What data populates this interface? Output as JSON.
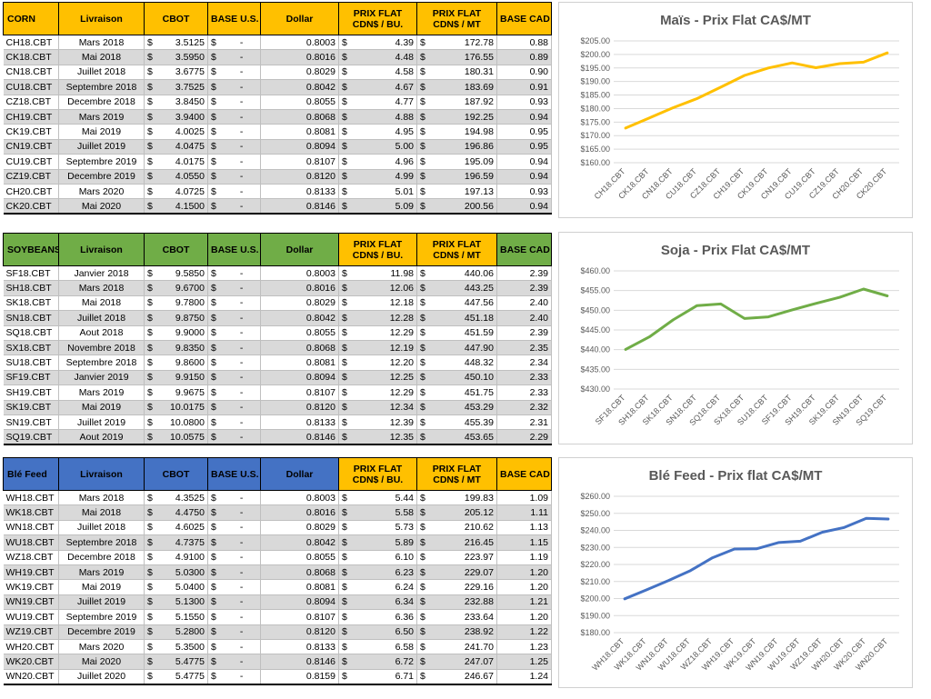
{
  "tables": [
    {
      "id": "corn",
      "headers": [
        "CORN",
        "Livraison",
        "CBOT",
        "BASE U.S.",
        "Dollar",
        "PRIX FLAT CDN$ / BU.",
        "PRIX FLAT CDN$ / MT",
        "BASE CAD"
      ],
      "rows": [
        {
          "code": "CH18.CBT",
          "delivery": "Mars 2018",
          "cbot": "3.5125",
          "base_us": "-",
          "dollar": "0.8003",
          "flat_bu": "4.39",
          "flat_mt": "172.78",
          "base_cad": "0.88"
        },
        {
          "code": "CK18.CBT",
          "delivery": "Mai 2018",
          "cbot": "3.5950",
          "base_us": "-",
          "dollar": "0.8016",
          "flat_bu": "4.48",
          "flat_mt": "176.55",
          "base_cad": "0.89"
        },
        {
          "code": "CN18.CBT",
          "delivery": "Juillet 2018",
          "cbot": "3.6775",
          "base_us": "-",
          "dollar": "0.8029",
          "flat_bu": "4.58",
          "flat_mt": "180.31",
          "base_cad": "0.90"
        },
        {
          "code": "CU18.CBT",
          "delivery": "Septembre 2018",
          "cbot": "3.7525",
          "base_us": "-",
          "dollar": "0.8042",
          "flat_bu": "4.67",
          "flat_mt": "183.69",
          "base_cad": "0.91"
        },
        {
          "code": "CZ18.CBT",
          "delivery": "Decembre 2018",
          "cbot": "3.8450",
          "base_us": "-",
          "dollar": "0.8055",
          "flat_bu": "4.77",
          "flat_mt": "187.92",
          "base_cad": "0.93"
        },
        {
          "code": "CH19.CBT",
          "delivery": "Mars 2019",
          "cbot": "3.9400",
          "base_us": "-",
          "dollar": "0.8068",
          "flat_bu": "4.88",
          "flat_mt": "192.25",
          "base_cad": "0.94"
        },
        {
          "code": "CK19.CBT",
          "delivery": "Mai 2019",
          "cbot": "4.0025",
          "base_us": "-",
          "dollar": "0.8081",
          "flat_bu": "4.95",
          "flat_mt": "194.98",
          "base_cad": "0.95"
        },
        {
          "code": "CN19.CBT",
          "delivery": "Juillet 2019",
          "cbot": "4.0475",
          "base_us": "-",
          "dollar": "0.8094",
          "flat_bu": "5.00",
          "flat_mt": "196.86",
          "base_cad": "0.95"
        },
        {
          "code": "CU19.CBT",
          "delivery": "Septembre 2019",
          "cbot": "4.0175",
          "base_us": "-",
          "dollar": "0.8107",
          "flat_bu": "4.96",
          "flat_mt": "195.09",
          "base_cad": "0.94"
        },
        {
          "code": "CZ19.CBT",
          "delivery": "Decembre 2019",
          "cbot": "4.0550",
          "base_us": "-",
          "dollar": "0.8120",
          "flat_bu": "4.99",
          "flat_mt": "196.59",
          "base_cad": "0.94"
        },
        {
          "code": "CH20.CBT",
          "delivery": "Mars 2020",
          "cbot": "4.0725",
          "base_us": "-",
          "dollar": "0.8133",
          "flat_bu": "5.01",
          "flat_mt": "197.13",
          "base_cad": "0.93"
        },
        {
          "code": "CK20.CBT",
          "delivery": "Mai 2020",
          "cbot": "4.1500",
          "base_us": "-",
          "dollar": "0.8146",
          "flat_bu": "5.09",
          "flat_mt": "200.56",
          "base_cad": "0.94"
        }
      ]
    },
    {
      "id": "soybeans",
      "headers": [
        "SOYBEANS",
        "Livraison",
        "CBOT",
        "BASE U.S.",
        "Dollar",
        "PRIX FLAT CDN$ / BU.",
        "PRIX FLAT CDN$ / MT",
        "BASE CAD"
      ],
      "rows": [
        {
          "code": "SF18.CBT",
          "delivery": "Janvier 2018",
          "cbot": "9.5850",
          "base_us": "-",
          "dollar": "0.8003",
          "flat_bu": "11.98",
          "flat_mt": "440.06",
          "base_cad": "2.39"
        },
        {
          "code": "SH18.CBT",
          "delivery": "Mars 2018",
          "cbot": "9.6700",
          "base_us": "-",
          "dollar": "0.8016",
          "flat_bu": "12.06",
          "flat_mt": "443.25",
          "base_cad": "2.39"
        },
        {
          "code": "SK18.CBT",
          "delivery": "Mai 2018",
          "cbot": "9.7800",
          "base_us": "-",
          "dollar": "0.8029",
          "flat_bu": "12.18",
          "flat_mt": "447.56",
          "base_cad": "2.40"
        },
        {
          "code": "SN18.CBT",
          "delivery": "Juillet 2018",
          "cbot": "9.8750",
          "base_us": "-",
          "dollar": "0.8042",
          "flat_bu": "12.28",
          "flat_mt": "451.18",
          "base_cad": "2.40"
        },
        {
          "code": "SQ18.CBT",
          "delivery": "Aout 2018",
          "cbot": "9.9000",
          "base_us": "-",
          "dollar": "0.8055",
          "flat_bu": "12.29",
          "flat_mt": "451.59",
          "base_cad": "2.39"
        },
        {
          "code": "SX18.CBT",
          "delivery": "Novembre 2018",
          "cbot": "9.8350",
          "base_us": "-",
          "dollar": "0.8068",
          "flat_bu": "12.19",
          "flat_mt": "447.90",
          "base_cad": "2.35"
        },
        {
          "code": "SU18.CBT",
          "delivery": "Septembre 2018",
          "cbot": "9.8600",
          "base_us": "-",
          "dollar": "0.8081",
          "flat_bu": "12.20",
          "flat_mt": "448.32",
          "base_cad": "2.34"
        },
        {
          "code": "SF19.CBT",
          "delivery": "Janvier 2019",
          "cbot": "9.9150",
          "base_us": "-",
          "dollar": "0.8094",
          "flat_bu": "12.25",
          "flat_mt": "450.10",
          "base_cad": "2.33"
        },
        {
          "code": "SH19.CBT",
          "delivery": "Mars 2019",
          "cbot": "9.9675",
          "base_us": "-",
          "dollar": "0.8107",
          "flat_bu": "12.29",
          "flat_mt": "451.75",
          "base_cad": "2.33"
        },
        {
          "code": "SK19.CBT",
          "delivery": "Mai 2019",
          "cbot": "10.0175",
          "base_us": "-",
          "dollar": "0.8120",
          "flat_bu": "12.34",
          "flat_mt": "453.29",
          "base_cad": "2.32"
        },
        {
          "code": "SN19.CBT",
          "delivery": "Juillet 2019",
          "cbot": "10.0800",
          "base_us": "-",
          "dollar": "0.8133",
          "flat_bu": "12.39",
          "flat_mt": "455.39",
          "base_cad": "2.31"
        },
        {
          "code": "SQ19.CBT",
          "delivery": "Aout 2019",
          "cbot": "10.0575",
          "base_us": "-",
          "dollar": "0.8146",
          "flat_bu": "12.35",
          "flat_mt": "453.65",
          "base_cad": "2.29"
        }
      ]
    },
    {
      "id": "wheat",
      "headers": [
        "Blé Feed",
        "Livraison",
        "CBOT",
        "BASE U.S.",
        "Dollar",
        "PRIX FLAT CDN$ / BU.",
        "PRIX FLAT CDN$ / MT",
        "BASE CAD"
      ],
      "rows": [
        {
          "code": "WH18.CBT",
          "delivery": "Mars 2018",
          "cbot": "4.3525",
          "base_us": "-",
          "dollar": "0.8003",
          "flat_bu": "5.44",
          "flat_mt": "199.83",
          "base_cad": "1.09"
        },
        {
          "code": "WK18.CBT",
          "delivery": "Mai 2018",
          "cbot": "4.4750",
          "base_us": "-",
          "dollar": "0.8016",
          "flat_bu": "5.58",
          "flat_mt": "205.12",
          "base_cad": "1.11"
        },
        {
          "code": "WN18.CBT",
          "delivery": "Juillet 2018",
          "cbot": "4.6025",
          "base_us": "-",
          "dollar": "0.8029",
          "flat_bu": "5.73",
          "flat_mt": "210.62",
          "base_cad": "1.13"
        },
        {
          "code": "WU18.CBT",
          "delivery": "Septembre 2018",
          "cbot": "4.7375",
          "base_us": "-",
          "dollar": "0.8042",
          "flat_bu": "5.89",
          "flat_mt": "216.45",
          "base_cad": "1.15"
        },
        {
          "code": "WZ18.CBT",
          "delivery": "Decembre 2018",
          "cbot": "4.9100",
          "base_us": "-",
          "dollar": "0.8055",
          "flat_bu": "6.10",
          "flat_mt": "223.97",
          "base_cad": "1.19"
        },
        {
          "code": "WH19.CBT",
          "delivery": "Mars 2019",
          "cbot": "5.0300",
          "base_us": "-",
          "dollar": "0.8068",
          "flat_bu": "6.23",
          "flat_mt": "229.07",
          "base_cad": "1.20"
        },
        {
          "code": "WK19.CBT",
          "delivery": "Mai 2019",
          "cbot": "5.0400",
          "base_us": "-",
          "dollar": "0.8081",
          "flat_bu": "6.24",
          "flat_mt": "229.16",
          "base_cad": "1.20"
        },
        {
          "code": "WN19.CBT",
          "delivery": "Juillet 2019",
          "cbot": "5.1300",
          "base_us": "-",
          "dollar": "0.8094",
          "flat_bu": "6.34",
          "flat_mt": "232.88",
          "base_cad": "1.21"
        },
        {
          "code": "WU19.CBT",
          "delivery": "Septembre 2019",
          "cbot": "5.1550",
          "base_us": "-",
          "dollar": "0.8107",
          "flat_bu": "6.36",
          "flat_mt": "233.64",
          "base_cad": "1.20"
        },
        {
          "code": "WZ19.CBT",
          "delivery": "Decembre 2019",
          "cbot": "5.2800",
          "base_us": "-",
          "dollar": "0.8120",
          "flat_bu": "6.50",
          "flat_mt": "238.92",
          "base_cad": "1.22"
        },
        {
          "code": "WH20.CBT",
          "delivery": "Mars 2020",
          "cbot": "5.3500",
          "base_us": "-",
          "dollar": "0.8133",
          "flat_bu": "6.58",
          "flat_mt": "241.70",
          "base_cad": "1.23"
        },
        {
          "code": "WK20.CBT",
          "delivery": "Mai 2020",
          "cbot": "5.4775",
          "base_us": "-",
          "dollar": "0.8146",
          "flat_bu": "6.72",
          "flat_mt": "247.07",
          "base_cad": "1.25"
        },
        {
          "code": "WN20.CBT",
          "delivery": "Juillet 2020",
          "cbot": "5.4775",
          "base_us": "-",
          "dollar": "0.8159",
          "flat_bu": "6.71",
          "flat_mt": "246.67",
          "base_cad": "1.24"
        }
      ]
    }
  ],
  "chart_data": [
    {
      "type": "line",
      "title": "Maïs - Prix Flat CA$/MT",
      "color": "#ffc000",
      "categories": [
        "CH18.CBT",
        "CK18.CBT",
        "CN18.CBT",
        "CU18.CBT",
        "CZ18.CBT",
        "CH19.CBT",
        "CK19.CBT",
        "CN19.CBT",
        "CU19.CBT",
        "CZ19.CBT",
        "CH20.CBT",
        "CK20.CBT"
      ],
      "values": [
        172.78,
        176.55,
        180.31,
        183.69,
        187.92,
        192.25,
        194.98,
        196.86,
        195.09,
        196.59,
        197.13,
        200.56
      ],
      "ylim": [
        160,
        205
      ],
      "yticks": [
        160,
        165,
        170,
        175,
        180,
        185,
        190,
        195,
        200,
        205
      ],
      "grid": true
    },
    {
      "type": "line",
      "title": "Soja - Prix Flat CA$/MT",
      "color": "#70ad47",
      "categories": [
        "SF18.CBT",
        "SH18.CBT",
        "SK18.CBT",
        "SN18.CBT",
        "SQ18.CBT",
        "SX18.CBT",
        "SU18.CBT",
        "SF19.CBT",
        "SH19.CBT",
        "SK19.CBT",
        "SN19.CBT",
        "SQ19.CBT"
      ],
      "values": [
        440.06,
        443.25,
        447.56,
        451.18,
        451.59,
        447.9,
        448.32,
        450.1,
        451.75,
        453.29,
        455.39,
        453.65
      ],
      "ylim": [
        430,
        460
      ],
      "yticks": [
        430,
        435,
        440,
        445,
        450,
        455,
        460
      ],
      "grid": true
    },
    {
      "type": "line",
      "title": "Blé Feed - Prix flat CA$/MT",
      "color": "#4472c4",
      "categories": [
        "WH18.CBT",
        "WK18.CBT",
        "WN18.CBT",
        "WU18.CBT",
        "WZ18.CBT",
        "WH19.CBT",
        "WK19.CBT",
        "WN19.CBT",
        "WU19.CBT",
        "WZ19.CBT",
        "WH20.CBT",
        "WK20.CBT",
        "WN20.CBT"
      ],
      "values": [
        199.83,
        205.12,
        210.62,
        216.45,
        223.97,
        229.07,
        229.16,
        232.88,
        233.64,
        238.92,
        241.7,
        247.07,
        246.67
      ],
      "ylim": [
        180,
        260
      ],
      "yticks": [
        180,
        190,
        200,
        210,
        220,
        230,
        240,
        250,
        260
      ],
      "grid": true
    }
  ]
}
